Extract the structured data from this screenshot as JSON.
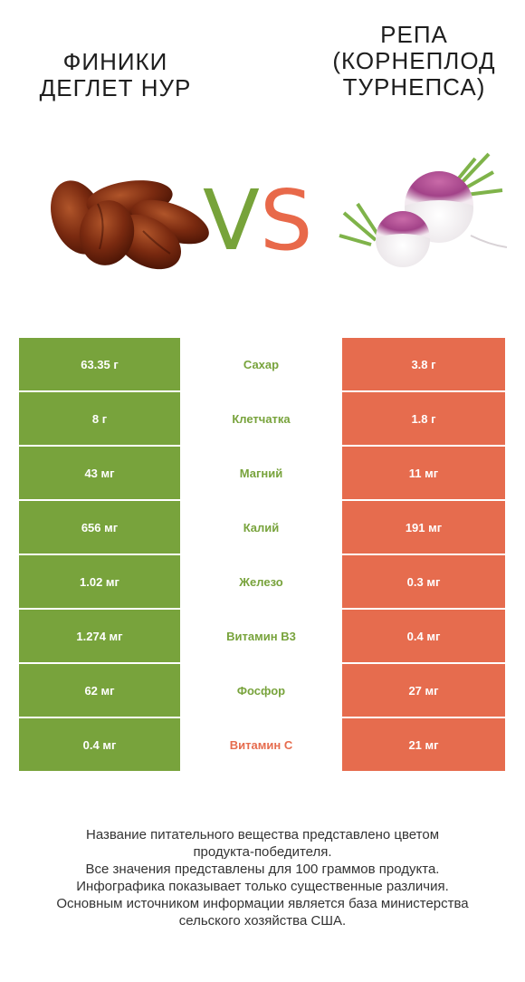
{
  "colors": {
    "left_winner": "#78a33c",
    "right_winner": "#e66c4e"
  },
  "header": {
    "left_title": "Финики Деглет Нур",
    "right_title": "Репа (корнеплод турнепса)",
    "vs_v": "V",
    "vs_s": "S"
  },
  "rows": [
    {
      "left": "63.35 г",
      "nutrient": "Сахар",
      "right": "3.8 г",
      "winner": "left"
    },
    {
      "left": "8 г",
      "nutrient": "Клетчатка",
      "right": "1.8 г",
      "winner": "left"
    },
    {
      "left": "43 мг",
      "nutrient": "Магний",
      "right": "11 мг",
      "winner": "left"
    },
    {
      "left": "656 мг",
      "nutrient": "Калий",
      "right": "191 мг",
      "winner": "left"
    },
    {
      "left": "1.02 мг",
      "nutrient": "Железо",
      "right": "0.3 мг",
      "winner": "left"
    },
    {
      "left": "1.274 мг",
      "nutrient": "Витамин B3",
      "right": "0.4 мг",
      "winner": "left"
    },
    {
      "left": "62 мг",
      "nutrient": "Фосфор",
      "right": "27 мг",
      "winner": "left"
    },
    {
      "left": "0.4 мг",
      "nutrient": "Витамин C",
      "right": "21 мг",
      "winner": "right"
    }
  ],
  "footnote": [
    "Название питательного вещества представлено цветом",
    "продукта-победителя.",
    "Все значения представлены для 100 граммов продукта.",
    "Инфографика показывает только существенные различия.",
    "Основным источником информации является база министерства",
    "сельского хозяйства США."
  ]
}
